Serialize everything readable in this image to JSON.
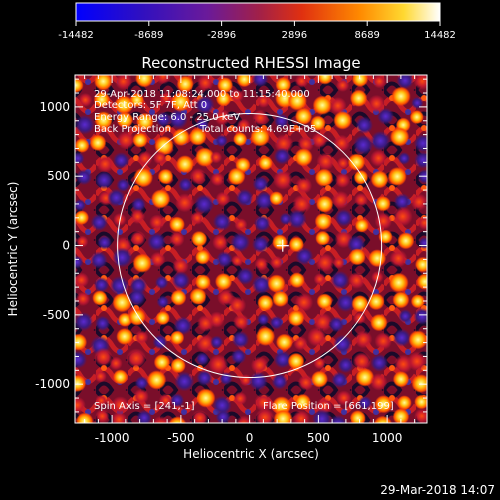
{
  "colorbar": {
    "tick_labels": [
      "-14482",
      "-8689",
      "-2896",
      "2896",
      "8689",
      "14482"
    ]
  },
  "title": "Reconstructed RHESSI Image",
  "xlabel": "Heliocentric X (arcsec)",
  "ylabel": "Heliocentric Y (arcsec)",
  "x_tick_labels": [
    "-1000",
    "-500",
    "0",
    "500",
    "1000"
  ],
  "y_tick_labels": [
    "1000",
    "500",
    "0",
    "-500",
    "-1000"
  ],
  "axes": {
    "xlim": [
      -1270,
      1290
    ],
    "ylim": [
      -1280,
      1230
    ],
    "x_ticks": [
      -1000,
      -500,
      0,
      500,
      1000
    ],
    "y_ticks": [
      1000,
      500,
      0,
      -500,
      -1000
    ]
  },
  "annotations": {
    "time_range": "29-Apr-2018 11:08:24.000 to 11:15:40.000",
    "detectors": "Detectors: 5F 7F, Att 0",
    "energy_range": "Energy Range: 6.0 - 25.0 keV",
    "method": "Back Projection",
    "total_counts": "Total counts: 4.69E+05",
    "spin_axis": "Spin Axis = [241,-1]",
    "flare_position": "Flare Position = [661,199]"
  },
  "solar_limb": {
    "center": [
      0,
      0
    ],
    "radius_arcsec": 960
  },
  "marker": {
    "x": 241,
    "y": -1
  },
  "footer_timestamp": "29-Mar-2018 14:07",
  "colors": {
    "background": "#000000",
    "foreground": "#ffffff"
  }
}
